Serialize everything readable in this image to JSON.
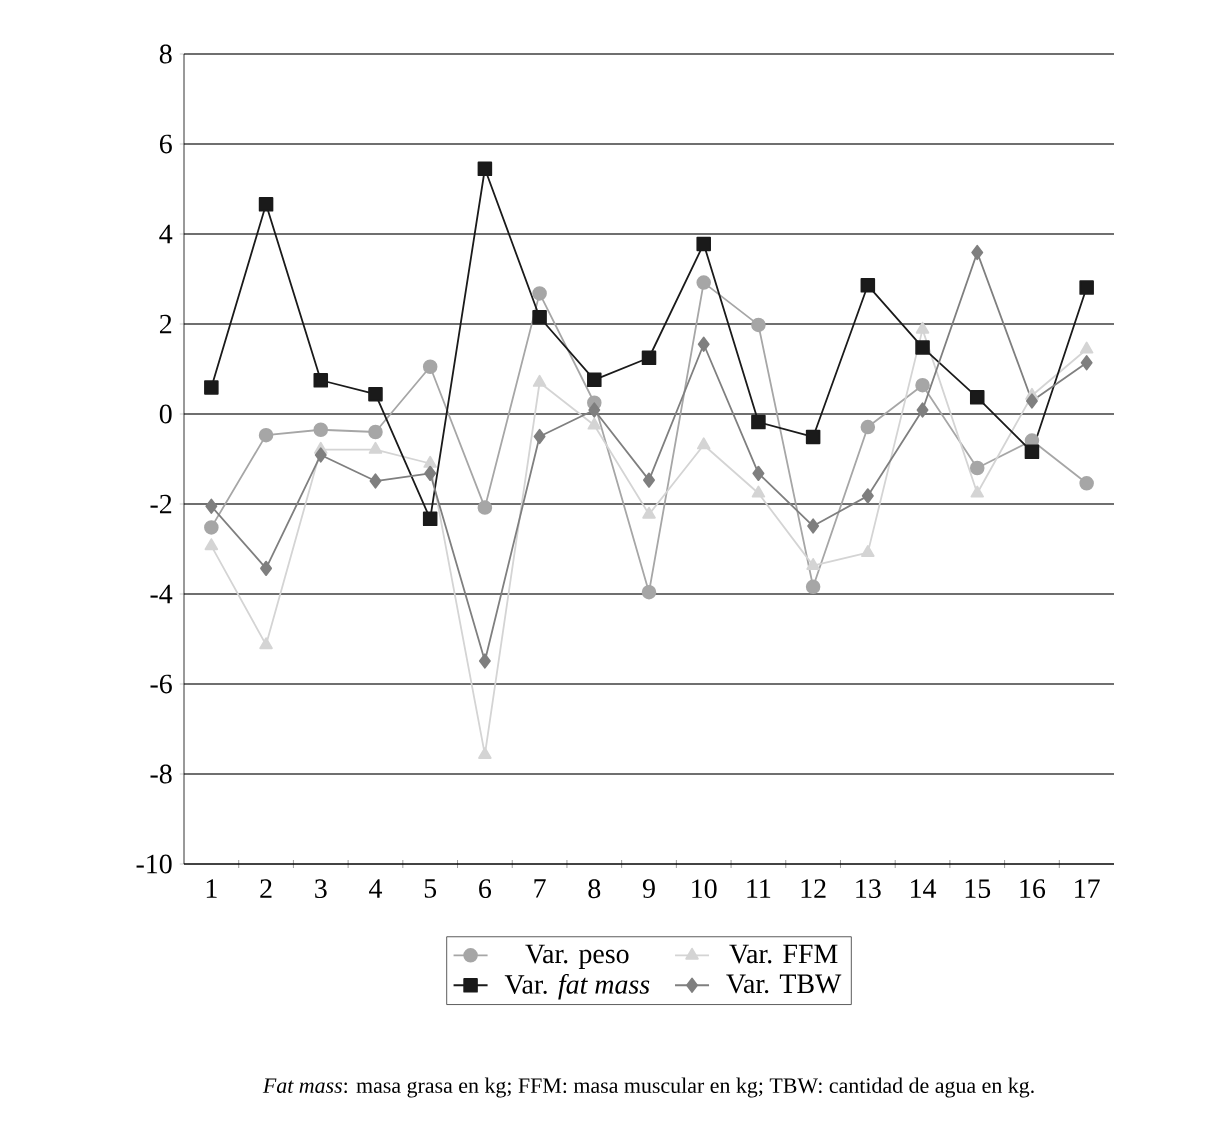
{
  "chart_data": {
    "type": "line",
    "categories": [
      "1",
      "2",
      "3",
      "4",
      "5",
      "6",
      "7",
      "8",
      "9",
      "10",
      "11",
      "12",
      "13",
      "14",
      "15",
      "16",
      "17"
    ],
    "series": [
      {
        "name": "Var. peso",
        "color": "#a6a6a6",
        "marker": "circle",
        "values": [
          -2.52,
          -0.47,
          -0.35,
          -0.4,
          1.05,
          -2.08,
          2.68,
          0.25,
          -3.96,
          2.92,
          1.98,
          -3.84,
          -0.29,
          0.64,
          -1.2,
          -0.59,
          -1.54
        ]
      },
      {
        "name": "Var. FFM",
        "color": "#d4d4d4",
        "marker": "triangle",
        "values": [
          -2.93,
          -5.13,
          -0.79,
          -0.79,
          -1.1,
          -7.57,
          0.7,
          -0.25,
          -2.23,
          -0.69,
          -1.76,
          -3.37,
          -3.08,
          1.88,
          -1.76,
          0.41,
          1.44
        ]
      },
      {
        "name": "Var. *fat mass*",
        "color": "#1a1a1a",
        "marker": "square",
        "values": [
          0.59,
          4.66,
          0.75,
          0.44,
          -2.33,
          5.45,
          2.15,
          0.76,
          1.25,
          3.78,
          -0.18,
          -0.51,
          2.86,
          1.48,
          0.37,
          -0.84,
          2.81
        ]
      },
      {
        "name": "Var. TBW",
        "color": "#7f7f7f",
        "marker": "diamond",
        "values": [
          -2.05,
          -3.43,
          -0.91,
          -1.49,
          -1.32,
          -5.49,
          -0.5,
          0.09,
          -1.47,
          1.55,
          -1.32,
          -2.49,
          -1.82,
          0.09,
          3.59,
          0.29,
          1.14
        ]
      }
    ],
    "ylim": [
      -10,
      8
    ],
    "yticks": [
      -10,
      -8,
      -6,
      -4,
      -2,
      0,
      2,
      4,
      6,
      8
    ],
    "grid": "y",
    "legend": "bottom",
    "annotations": [
      "*Fat mass*: masa grasa en kg; FFM: masa muscular en kg; TBW: cantidad de agua en kg."
    ]
  }
}
